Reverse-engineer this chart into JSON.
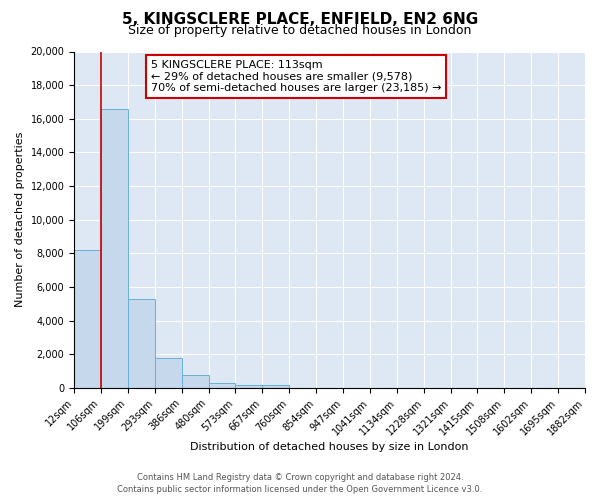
{
  "title": "5, KINGSCLERE PLACE, ENFIELD, EN2 6NG",
  "subtitle": "Size of property relative to detached houses in London",
  "xlabel": "Distribution of detached houses by size in London",
  "ylabel": "Number of detached properties",
  "bar_values": [
    8200,
    16600,
    5300,
    1800,
    750,
    300,
    200,
    150,
    0,
    0,
    0,
    0,
    0,
    0,
    0,
    0,
    0,
    0,
    0
  ],
  "bin_labels": [
    "12sqm",
    "106sqm",
    "199sqm",
    "293sqm",
    "386sqm",
    "480sqm",
    "573sqm",
    "667sqm",
    "760sqm",
    "854sqm",
    "947sqm",
    "1041sqm",
    "1134sqm",
    "1228sqm",
    "1321sqm",
    "1415sqm",
    "1508sqm",
    "1602sqm",
    "1695sqm",
    "1882sqm"
  ],
  "bar_color": "#c5d8ec",
  "bar_edge_color": "#6baed6",
  "property_line_x": 1,
  "property_line_color": "#cc0000",
  "ylim": [
    0,
    20000
  ],
  "yticks": [
    0,
    2000,
    4000,
    6000,
    8000,
    10000,
    12000,
    14000,
    16000,
    18000,
    20000
  ],
  "annotation_line1": "5 KINGSCLERE PLACE: 113sqm",
  "annotation_line2": "← 29% of detached houses are smaller (9,578)",
  "annotation_line3": "70% of semi-detached houses are larger (23,185) →",
  "annotation_box_color": "#ffffff",
  "annotation_box_edge_color": "#cc0000",
  "footer_line1": "Contains HM Land Registry data © Crown copyright and database right 2024.",
  "footer_line2": "Contains public sector information licensed under the Open Government Licence v3.0.",
  "fig_bg_color": "#ffffff",
  "ax_bg_color": "#dde8f4",
  "grid_color": "#ffffff",
  "title_fontsize": 11,
  "subtitle_fontsize": 9,
  "tick_fontsize": 7,
  "ylabel_fontsize": 8,
  "xlabel_fontsize": 8,
  "annotation_fontsize": 8,
  "footer_fontsize": 6
}
